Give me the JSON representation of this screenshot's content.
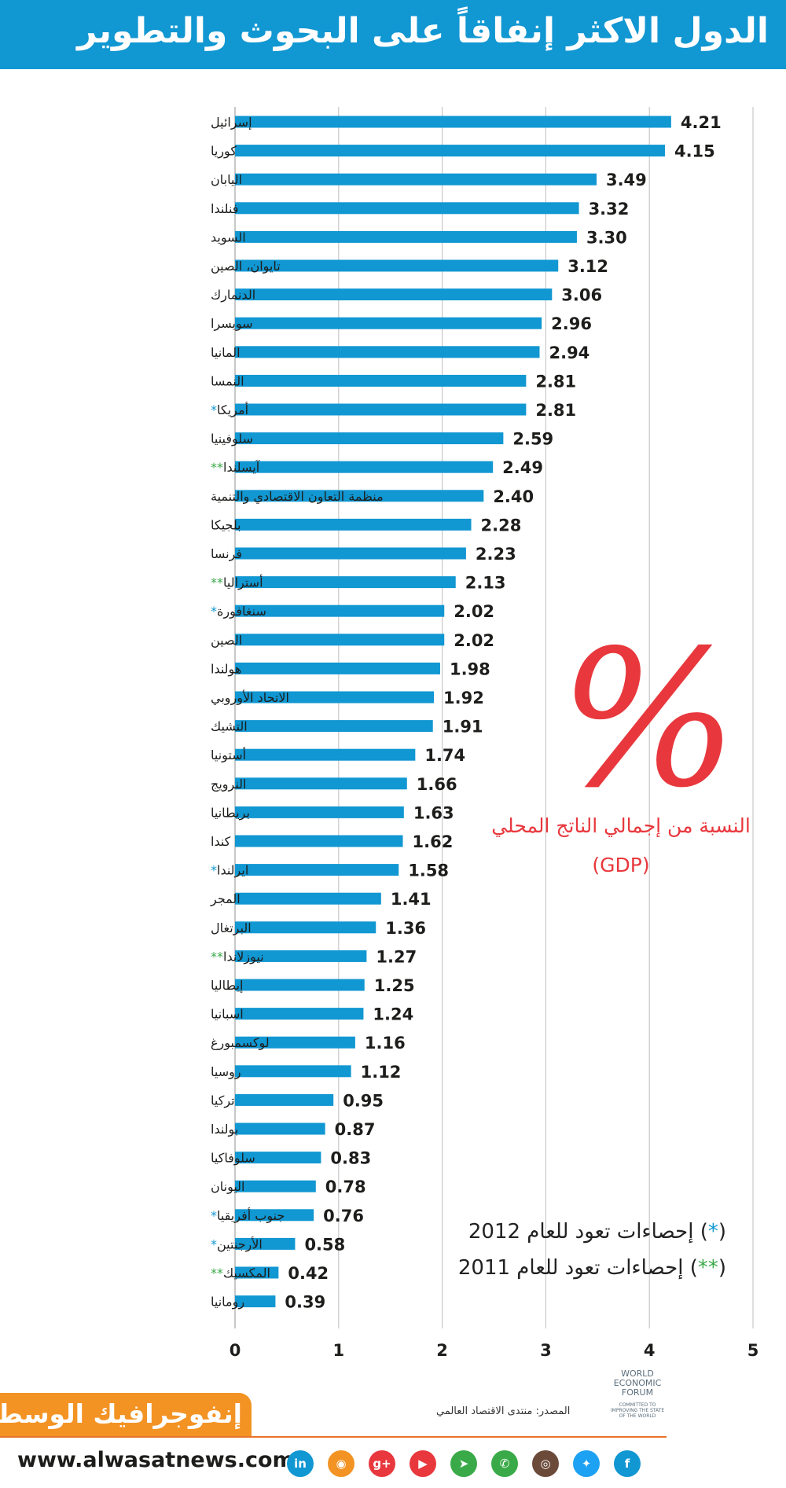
{
  "header": {
    "title": "الدول الاكثر إنفاقاً على البحوث والتطوير"
  },
  "chart_data": {
    "type": "bar",
    "orientation": "horizontal",
    "categories": [
      "إسرائيل",
      "كوريا",
      "اليابان",
      "فنلندا",
      "السويد",
      "تايوان، الصين",
      "الدنمارك",
      "سويسرا",
      "المانيا",
      "النمسا",
      "أمريكا",
      "سلوفينيا",
      "آيسلندا",
      "منظمة التعاون الاقتصادي والتنمية",
      "بلجيكا",
      "فرنسا",
      "أستراليا",
      "سنغافورة",
      "الصين",
      "هولندا",
      "الاتحاد الأوروبي",
      "التشيك",
      "أستونيا",
      "النرويج",
      "بريطانيا",
      "كندا",
      "ايرلندا",
      "المجر",
      "البرتغال",
      "نيوزلاندا",
      "إيطاليا",
      "اسبانيا",
      "لوكسمبورغ",
      "روسيا",
      "تركيا",
      "بولندا",
      "سلوفاكيا",
      "اليونان",
      "جنوب أفريقيا",
      "الأرجنتين",
      "المكسيك",
      "رومانيا"
    ],
    "values": [
      4.21,
      4.15,
      3.49,
      3.32,
      3.3,
      3.12,
      3.06,
      2.96,
      2.94,
      2.81,
      2.81,
      2.59,
      2.49,
      2.4,
      2.28,
      2.23,
      2.13,
      2.02,
      2.02,
      1.98,
      1.92,
      1.91,
      1.74,
      1.66,
      1.63,
      1.62,
      1.58,
      1.41,
      1.36,
      1.27,
      1.25,
      1.24,
      1.16,
      1.12,
      0.95,
      0.87,
      0.83,
      0.78,
      0.76,
      0.58,
      0.42,
      0.39
    ],
    "value_labels": [
      "4.21",
      "4.15",
      "3.49",
      "3.32",
      "3.30",
      "3.12",
      "3.06",
      "2.96",
      "2.94",
      "2.81",
      "2.81",
      "2.59",
      "2.49",
      "2.40",
      "2.28",
      "2.23",
      "2.13",
      "2.02",
      "2.02",
      "1.98",
      "1.92",
      "1.91",
      "1.74",
      "1.66",
      "1.63",
      "1.62",
      "1.58",
      "1.41",
      "1.36",
      "1.27",
      "1.25",
      "1.24",
      "1.16",
      "1.12",
      "0.95",
      "0.87",
      "0.83",
      "0.78",
      "0.76",
      "0.58",
      "0.42",
      "0.39"
    ],
    "markers": [
      "",
      "",
      "",
      "",
      "",
      "",
      "",
      "",
      "",
      "",
      "*",
      "",
      "**",
      "",
      "",
      "",
      "**",
      "*",
      "",
      "",
      "",
      "",
      "",
      "",
      "",
      "",
      "*",
      "",
      "",
      "**",
      "",
      "",
      "",
      "",
      "",
      "",
      "",
      "",
      "*",
      "*",
      "**",
      ""
    ],
    "x_ticks": [
      0,
      1,
      2,
      3,
      4,
      5
    ],
    "xlim": [
      0,
      5
    ],
    "grid": true,
    "bar_color": "#1197d2"
  },
  "annotation": {
    "symbol": "%",
    "caption": "النسبة من إجمالي الناتج المحلي",
    "abbr": "(GDP)",
    "color": "#e8383d"
  },
  "notes": {
    "note1": {
      "marker": "*",
      "text": "إحصاءات تعود للعام 2012"
    },
    "note2": {
      "marker": "**",
      "text": "إحصاءات تعود للعام 2011"
    }
  },
  "footer": {
    "brand": "إنفوجرافيك الوسط",
    "source": "المصدر: منتدى الاقتصاد العالمي",
    "wef": [
      "WORLD",
      "ECONOMIC",
      "FORUM"
    ],
    "wef_tagline": "COMMITTED TO IMPROVING THE STATE OF THE WORLD",
    "website": "www.alwasatnews.com",
    "socials": [
      {
        "name": "linkedin-icon",
        "glyph": "in",
        "color": "#1197d2"
      },
      {
        "name": "rss-icon",
        "glyph": "◉",
        "color": "#f39324"
      },
      {
        "name": "google-plus-icon",
        "glyph": "g+",
        "color": "#e8383d"
      },
      {
        "name": "youtube-icon",
        "glyph": "▶",
        "color": "#e8383d"
      },
      {
        "name": "telegram-icon",
        "glyph": "➤",
        "color": "#3aaa49"
      },
      {
        "name": "whatsapp-icon",
        "glyph": "✆",
        "color": "#3aaa49"
      },
      {
        "name": "instagram-icon",
        "glyph": "◎",
        "color": "#6b4a3a"
      },
      {
        "name": "twitter-icon",
        "glyph": "✦",
        "color": "#1da1f2"
      },
      {
        "name": "facebook-icon",
        "glyph": "f",
        "color": "#1197d2"
      }
    ]
  }
}
